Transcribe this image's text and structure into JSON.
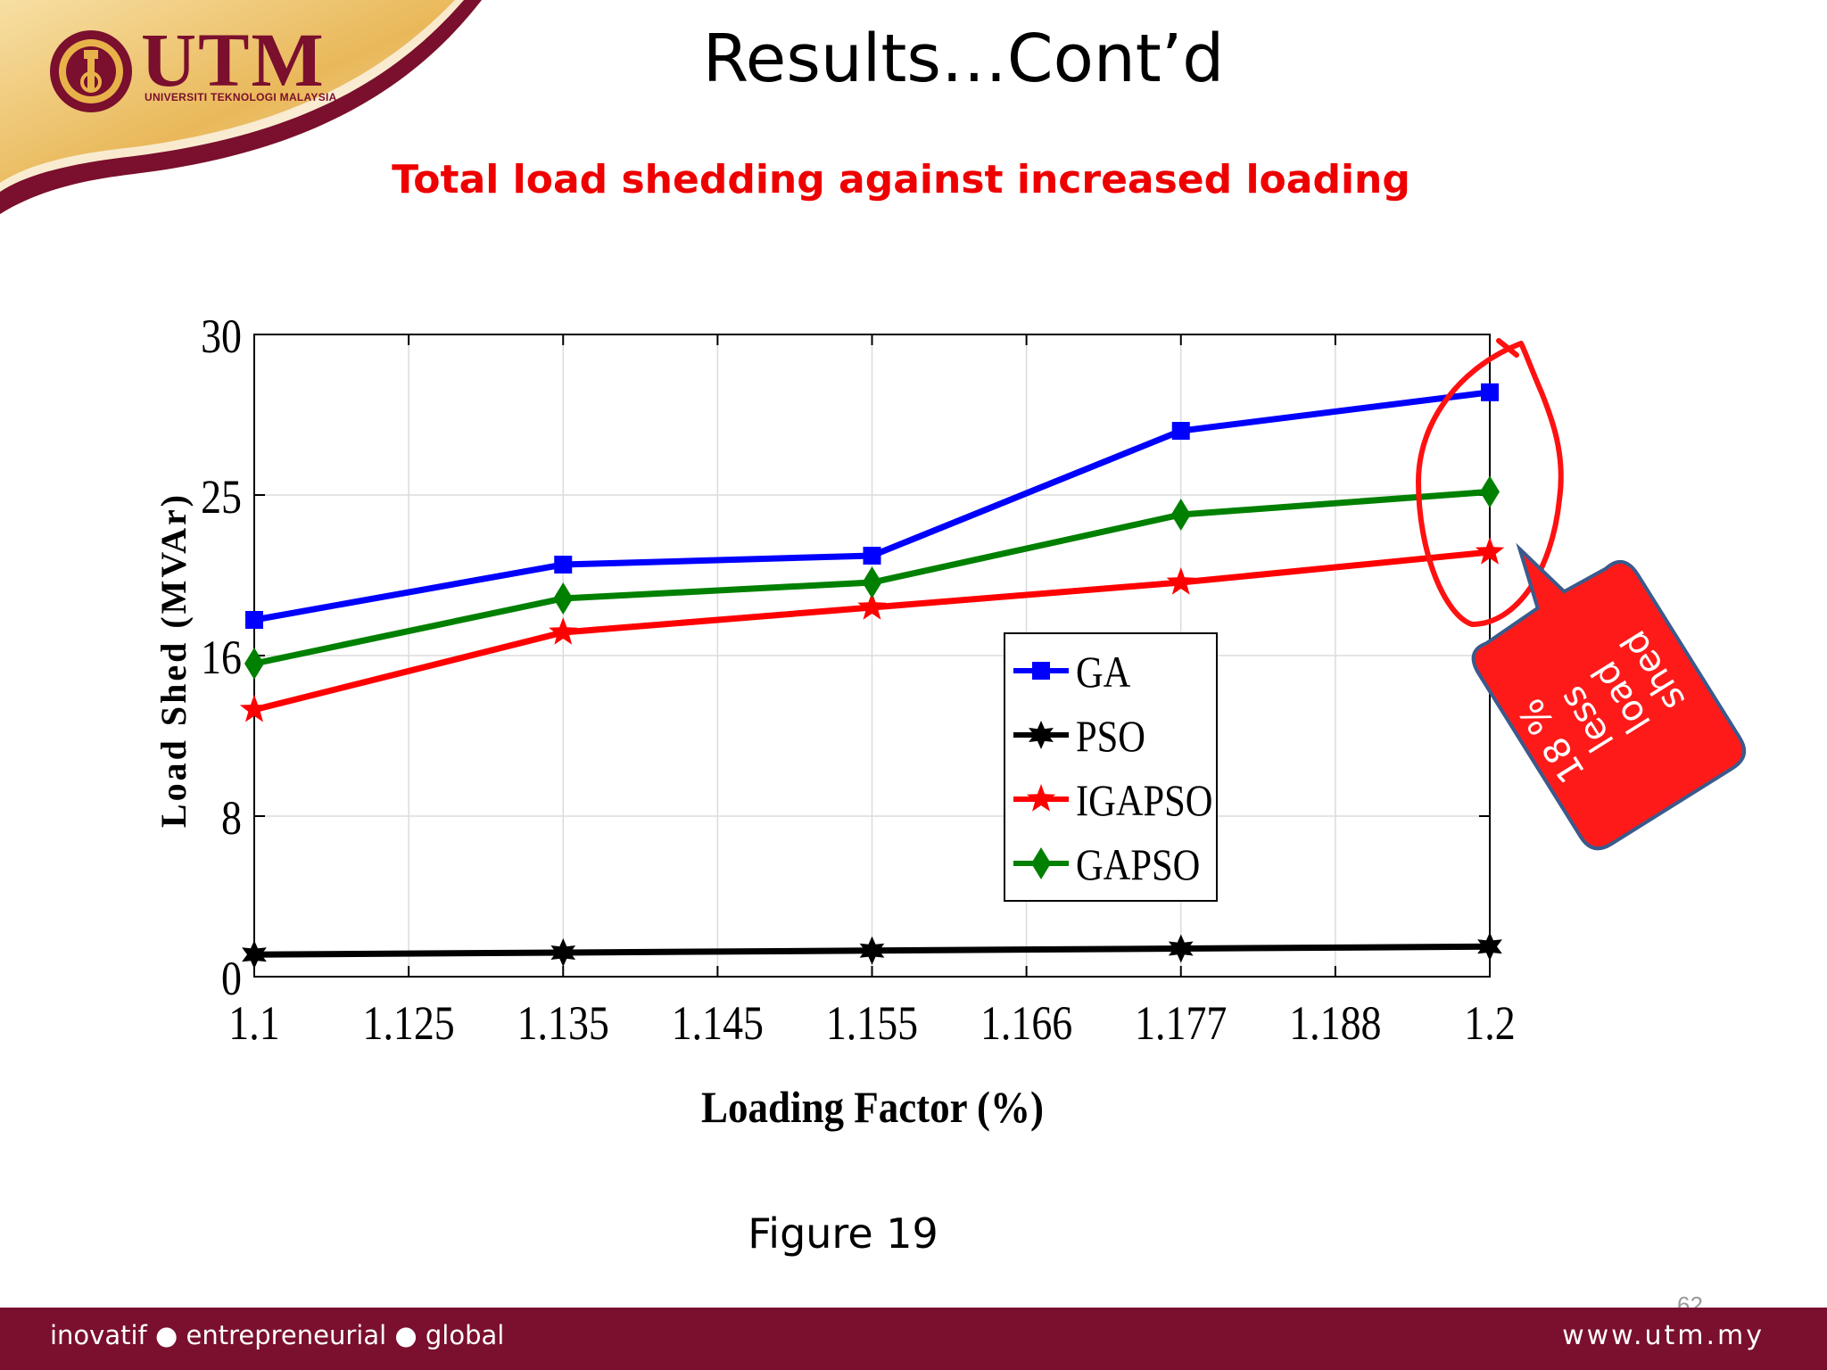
{
  "slide": {
    "title": "Results…Cont’d",
    "subtitle": "Total load shedding against increased loading",
    "caption": "Figure 19",
    "page_number": "62"
  },
  "logo": {
    "name": "UTM",
    "subtitle": "UNIVERSITI TEKNOLOGI MALAYSIA",
    "icon": "utm-emblem-icon"
  },
  "footer": {
    "tagline": "inovatif ● entrepreneurial ● global",
    "url": "www.utm.my"
  },
  "callout": {
    "text": [
      "18 %",
      "less",
      "load",
      "shed"
    ]
  },
  "colors": {
    "maroon": "#7a0f2e",
    "gold": "#e8b24a",
    "title_red": "#ee0000",
    "callout_fill": "#ff1a1a",
    "callout_border": "#3a5a8c",
    "ga": "#0000ff",
    "pso": "#000000",
    "igapso": "#ff0000",
    "gapso": "#008000"
  },
  "chart_data": {
    "type": "line",
    "title": "",
    "xlabel": "Loading Factor (%)",
    "ylabel": "Load Shed (MVAr)",
    "categories": [
      "1.1",
      "1.125",
      "1.135",
      "1.145",
      "1.155",
      "1.166",
      "1.177",
      "1.188",
      "1.2"
    ],
    "yticks": [
      0,
      8,
      16,
      25,
      30
    ],
    "ylim": [
      0,
      30
    ],
    "grid": true,
    "legend_position": "lower-right",
    "series": [
      {
        "name": "GA",
        "color": "#0000ff",
        "marker": "square",
        "x": [
          "1.1",
          "1.135",
          "1.155",
          "1.177",
          "1.2"
        ],
        "values": [
          18.0,
          21.1,
          21.6,
          27.0,
          28.2
        ]
      },
      {
        "name": "PSO",
        "color": "#000000",
        "marker": "hexagram",
        "x": [
          "1.1",
          "1.135",
          "1.155",
          "1.177",
          "1.2"
        ],
        "values": [
          1.1,
          1.2,
          1.3,
          1.4,
          1.5
        ]
      },
      {
        "name": "IGAPSO",
        "color": "#ff0000",
        "marker": "pentagram",
        "x": [
          "1.1",
          "1.135",
          "1.155",
          "1.177",
          "1.2"
        ],
        "values": [
          13.3,
          17.3,
          18.7,
          20.1,
          21.8
        ]
      },
      {
        "name": "GAPSO",
        "color": "#008000",
        "marker": "diamond",
        "x": [
          "1.1",
          "1.135",
          "1.155",
          "1.177",
          "1.2"
        ],
        "values": [
          15.6,
          19.2,
          20.1,
          23.9,
          25.1
        ]
      }
    ]
  }
}
